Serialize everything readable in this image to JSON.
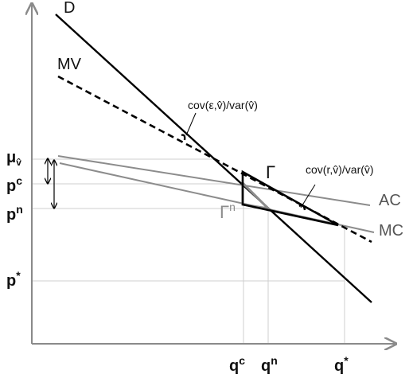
{
  "diagram": {
    "curves": {
      "demand": "D",
      "marginal_value": "MV",
      "average_cost": "AC",
      "marginal_cost": "MC"
    },
    "y_axis_labels": {
      "mu": "μ",
      "mu_sub": "v̂",
      "pc_base": "p",
      "pc_sup": "c",
      "pn_base": "p",
      "pn_sup": "n",
      "pstar_base": "p",
      "pstar_sup": "*"
    },
    "x_axis_labels": {
      "qc_base": "q",
      "qc_sup": "c",
      "qn_base": "q",
      "qn_sup": "n",
      "qstar_base": "q",
      "qstar_sup": "*"
    },
    "annotations": {
      "gamma": "Γ",
      "gamma_n_base": "Γ",
      "gamma_n_sup": "n",
      "cov_eps": "cov(ε,v̂)/var(v̂)",
      "cov_r": "cov(r,v̂)/var(v̂)"
    },
    "colors": {
      "axis": "#8a8a8a",
      "curve_dark": "#000000",
      "curve_gray": "#8c8c8c",
      "grid": "#cfcfcf",
      "text": "#111111"
    }
  }
}
